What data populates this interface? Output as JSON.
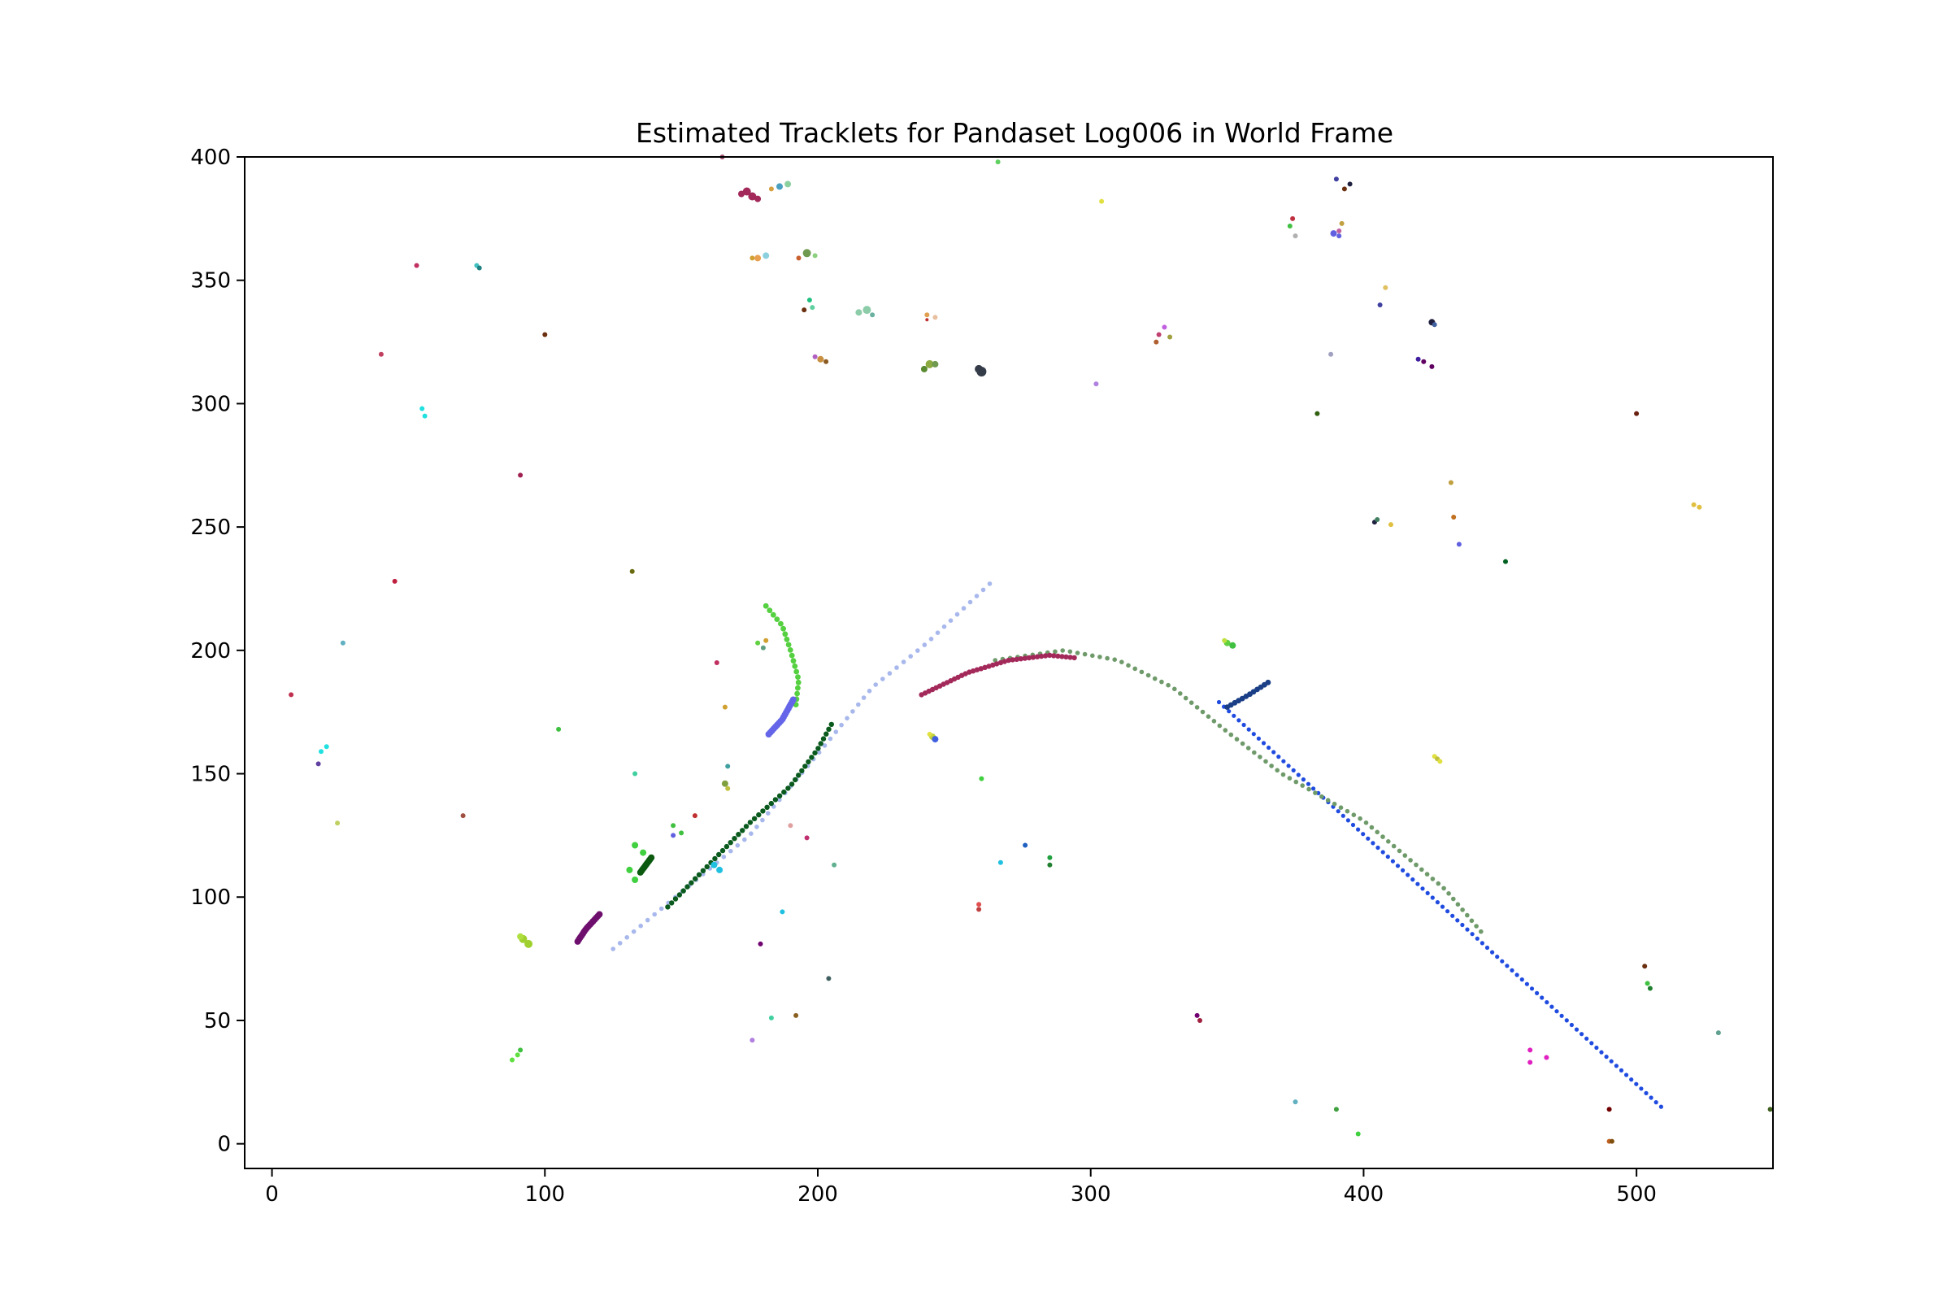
{
  "chart_data": {
    "type": "scatter",
    "title": "Estimated Tracklets for Pandaset Log006 in World Frame",
    "xlabel": "",
    "ylabel": "",
    "xlim": [
      -10,
      550
    ],
    "ylim": [
      -10,
      400
    ],
    "xticks": [
      0,
      100,
      200,
      300,
      400,
      500
    ],
    "yticks": [
      0,
      50,
      100,
      150,
      200,
      250,
      300,
      350,
      400
    ],
    "grid": false,
    "legend": "none",
    "tracks": [
      {
        "color": "#1f4be0",
        "kind": "line",
        "from": [
          347,
          179
        ],
        "to": [
          509,
          15
        ],
        "n": 90,
        "r": 2.6
      },
      {
        "color": "#a8b8ec",
        "kind": "poly",
        "pts": [
          [
            125,
            79
          ],
          [
            150,
            102
          ],
          [
            175,
            125
          ],
          [
            200,
            158
          ],
          [
            220,
            185
          ],
          [
            240,
            203
          ],
          [
            263,
            227
          ]
        ],
        "n": 60,
        "r": 2.8
      },
      {
        "color": "#6f9a6a",
        "kind": "poly",
        "pts": [
          [
            265,
            196
          ],
          [
            290,
            200
          ],
          [
            310,
            196
          ],
          [
            330,
            185
          ],
          [
            350,
            167
          ],
          [
            370,
            150
          ],
          [
            400,
            131
          ],
          [
            430,
            103
          ],
          [
            443,
            86
          ]
        ],
        "n": 80,
        "r": 2.8
      },
      {
        "color": "#a3295a",
        "kind": "poly",
        "pts": [
          [
            238,
            182
          ],
          [
            255,
            191
          ],
          [
            270,
            196
          ],
          [
            285,
            198
          ],
          [
            294,
            197
          ]
        ],
        "n": 40,
        "r": 3.2
      },
      {
        "color": "#0a5a1e",
        "kind": "poly",
        "pts": [
          [
            145,
            96
          ],
          [
            160,
            113
          ],
          [
            175,
            130
          ],
          [
            190,
            145
          ],
          [
            200,
            160
          ],
          [
            205,
            170
          ]
        ],
        "n": 45,
        "r": 3.2
      },
      {
        "color": "#1b3f86",
        "kind": "poly",
        "pts": [
          [
            350,
            177
          ],
          [
            358,
            182
          ],
          [
            365,
            187
          ]
        ],
        "n": 12,
        "r": 3.4
      },
      {
        "color": "#55d040",
        "kind": "poly",
        "pts": [
          [
            181,
            218
          ],
          [
            187,
            210
          ],
          [
            190,
            200
          ],
          [
            193,
            188
          ],
          [
            192,
            178
          ]
        ],
        "n": 20,
        "r": 3.4
      },
      {
        "color": "#6465e8",
        "kind": "poly",
        "pts": [
          [
            182,
            166
          ],
          [
            187,
            172
          ],
          [
            191,
            180
          ]
        ],
        "n": 18,
        "r": 4
      },
      {
        "color": "#6e0f6e",
        "kind": "poly",
        "pts": [
          [
            112,
            82
          ],
          [
            115,
            87
          ],
          [
            120,
            93
          ]
        ],
        "n": 16,
        "r": 4
      },
      {
        "color": "#0b5a10",
        "kind": "poly",
        "pts": [
          [
            135,
            110
          ],
          [
            139,
            116
          ]
        ],
        "n": 12,
        "r": 4
      }
    ],
    "points": [
      [
        176,
        384,
        "#a3295a",
        5
      ],
      [
        174,
        386,
        "#a3295a",
        5
      ],
      [
        172,
        385,
        "#a3295a",
        4
      ],
      [
        178,
        383,
        "#a3295a",
        4
      ],
      [
        186,
        388,
        "#4aa0c0",
        4
      ],
      [
        189,
        389,
        "#8cd0a0",
        4
      ],
      [
        183,
        387,
        "#d4a040",
        3
      ],
      [
        178,
        359,
        "#e8a050",
        4
      ],
      [
        181,
        360,
        "#8cd0e0",
        4
      ],
      [
        176,
        359,
        "#d0a030",
        3
      ],
      [
        196,
        361,
        "#6f9a50",
        5
      ],
      [
        193,
        359,
        "#c86030",
        3
      ],
      [
        199,
        360,
        "#8cd080",
        3
      ],
      [
        218,
        338,
        "#8ccca8",
        5
      ],
      [
        215,
        337,
        "#8ccca8",
        4
      ],
      [
        220,
        336,
        "#6ab0a0",
        3
      ],
      [
        241,
        316,
        "#8caa40",
        5
      ],
      [
        239,
        314,
        "#5a8a30",
        4
      ],
      [
        243,
        316,
        "#6f9a50",
        4
      ],
      [
        260,
        313,
        "#333c48",
        6
      ],
      [
        259,
        314,
        "#333c48",
        5
      ],
      [
        201,
        318,
        "#c89040",
        4
      ],
      [
        203,
        317,
        "#8a5a20",
        3
      ],
      [
        199,
        319,
        "#b060c0",
        3
      ],
      [
        197,
        342,
        "#20c080",
        3
      ],
      [
        198,
        339,
        "#60d0a0",
        3
      ],
      [
        195,
        338,
        "#6a3010",
        3
      ],
      [
        240,
        336,
        "#e0a050",
        3
      ],
      [
        243,
        335,
        "#e8c0a0",
        3
      ],
      [
        240,
        334,
        "#c03030",
        2
      ],
      [
        165,
        400,
        "#a05070",
        3
      ],
      [
        266,
        398,
        "#60d060",
        3
      ],
      [
        304,
        382,
        "#e0e040",
        3
      ],
      [
        302,
        308,
        "#b080e0",
        3
      ],
      [
        53,
        356,
        "#c03060",
        3
      ],
      [
        75,
        356,
        "#40c0c0",
        3
      ],
      [
        76,
        355,
        "#208080",
        3
      ],
      [
        100,
        328,
        "#6a3010",
        3
      ],
      [
        40,
        320,
        "#c04060",
        3
      ],
      [
        55,
        298,
        "#20e0e0",
        3
      ],
      [
        56,
        295,
        "#20e0e0",
        3
      ],
      [
        91,
        271,
        "#a02050",
        3
      ],
      [
        45,
        228,
        "#c02040",
        3
      ],
      [
        132,
        232,
        "#6a6a10",
        3
      ],
      [
        26,
        203,
        "#60b0c0",
        3
      ],
      [
        7,
        182,
        "#c03050",
        3
      ],
      [
        20,
        161,
        "#20e0e0",
        3
      ],
      [
        18,
        159,
        "#20e0e0",
        3
      ],
      [
        17,
        154,
        "#6040a0",
        3
      ],
      [
        105,
        168,
        "#40c040",
        3
      ],
      [
        24,
        130,
        "#c0d060",
        3
      ],
      [
        70,
        133,
        "#a05040",
        3
      ],
      [
        92,
        83,
        "#a0d030",
        5
      ],
      [
        94,
        81,
        "#a0d030",
        5
      ],
      [
        91,
        84,
        "#b0e040",
        4
      ],
      [
        88,
        34,
        "#60e040",
        3
      ],
      [
        90,
        36,
        "#60e040",
        3
      ],
      [
        91,
        38,
        "#40c040",
        3
      ],
      [
        133,
        121,
        "#40d040",
        4
      ],
      [
        136,
        118,
        "#40d040",
        4
      ],
      [
        133,
        107,
        "#40d040",
        4
      ],
      [
        131,
        111,
        "#40d040",
        4
      ],
      [
        147,
        125,
        "#6060e0",
        3
      ],
      [
        150,
        126,
        "#40c040",
        3
      ],
      [
        147,
        129,
        "#40c040",
        3
      ],
      [
        155,
        133,
        "#c03030",
        3
      ],
      [
        133,
        150,
        "#40d0a0",
        3
      ],
      [
        163,
        195,
        "#c03060",
        3
      ],
      [
        166,
        177,
        "#d0a030",
        3
      ],
      [
        167,
        153,
        "#40a0a0",
        3
      ],
      [
        166,
        146,
        "#80a040",
        4
      ],
      [
        167,
        144,
        "#c0c040",
        3
      ],
      [
        178,
        203,
        "#60d040",
        3
      ],
      [
        180,
        201,
        "#60a080",
        3
      ],
      [
        181,
        204,
        "#d0a030",
        3
      ],
      [
        162,
        113,
        "#20c0e0",
        4
      ],
      [
        164,
        111,
        "#20c0e0",
        4
      ],
      [
        190,
        129,
        "#e0a0a0",
        3
      ],
      [
        196,
        124,
        "#c03070",
        3
      ],
      [
        206,
        113,
        "#60b090",
        3
      ],
      [
        187,
        94,
        "#20c0e0",
        3
      ],
      [
        179,
        81,
        "#700070",
        3
      ],
      [
        204,
        67,
        "#406060",
        3
      ],
      [
        183,
        51,
        "#40d0a0",
        3
      ],
      [
        192,
        52,
        "#8a6020",
        3
      ],
      [
        176,
        42,
        "#b080e0",
        3
      ],
      [
        242,
        165,
        "#c0d040",
        4
      ],
      [
        243,
        164,
        "#4060e0",
        4
      ],
      [
        241,
        166,
        "#e0e040",
        3
      ],
      [
        260,
        148,
        "#40d040",
        3
      ],
      [
        259,
        97,
        "#e05050",
        3
      ],
      [
        259,
        95,
        "#c04040",
        3
      ],
      [
        267,
        114,
        "#20c0e0",
        3
      ],
      [
        276,
        121,
        "#2060c0",
        3
      ],
      [
        285,
        116,
        "#20a040",
        3
      ],
      [
        285,
        113,
        "#208030",
        3
      ],
      [
        339,
        52,
        "#700070",
        3
      ],
      [
        340,
        50,
        "#a02040",
        3
      ],
      [
        325,
        328,
        "#c04070",
        3
      ],
      [
        327,
        331,
        "#c060e0",
        3
      ],
      [
        324,
        325,
        "#b06030",
        3
      ],
      [
        329,
        327,
        "#a0a040",
        3
      ],
      [
        350,
        203,
        "#60d040",
        4
      ],
      [
        352,
        202,
        "#40c040",
        4
      ],
      [
        349,
        204,
        "#c0e040",
        3
      ],
      [
        373,
        372,
        "#40c040",
        3
      ],
      [
        374,
        375,
        "#c03040",
        3
      ],
      [
        375,
        368,
        "#b0b0b0",
        3
      ],
      [
        389,
        369,
        "#6060e0",
        4
      ],
      [
        391,
        368,
        "#6060e0",
        3
      ],
      [
        392,
        373,
        "#c0a040",
        3
      ],
      [
        391,
        370,
        "#c060a0",
        3
      ],
      [
        390,
        391,
        "#4040a0",
        3
      ],
      [
        393,
        387,
        "#6a3010",
        3
      ],
      [
        395,
        389,
        "#202040",
        3
      ],
      [
        383,
        296,
        "#306010",
        3
      ],
      [
        388,
        320,
        "#a0a0c0",
        3
      ],
      [
        406,
        340,
        "#4040a0",
        3
      ],
      [
        408,
        347,
        "#e0c060",
        3
      ],
      [
        420,
        318,
        "#4020a0",
        3
      ],
      [
        422,
        317,
        "#600060",
        3
      ],
      [
        425,
        315,
        "#600060",
        3
      ],
      [
        425,
        333,
        "#202040",
        4
      ],
      [
        426,
        332,
        "#4060a0",
        3
      ],
      [
        404,
        252,
        "#202040",
        3
      ],
      [
        405,
        253,
        "#408060",
        3
      ],
      [
        410,
        251,
        "#e0c040",
        3
      ],
      [
        432,
        268,
        "#c0a040",
        3
      ],
      [
        433,
        254,
        "#c07020",
        3
      ],
      [
        435,
        243,
        "#6060e0",
        3
      ],
      [
        452,
        236,
        "#006020",
        3
      ],
      [
        426,
        157,
        "#e0e040",
        3
      ],
      [
        427,
        156,
        "#c0c040",
        3
      ],
      [
        428,
        155,
        "#e0e040",
        3
      ],
      [
        500,
        296,
        "#6a2010",
        3
      ],
      [
        521,
        259,
        "#e0c040",
        3
      ],
      [
        523,
        258,
        "#e0c040",
        3
      ],
      [
        375,
        17,
        "#60b0c0",
        3
      ],
      [
        390,
        14,
        "#40a040",
        3
      ],
      [
        398,
        4,
        "#40d040",
        3
      ],
      [
        461,
        38,
        "#e020c0",
        3
      ],
      [
        461,
        33,
        "#e020c0",
        3
      ],
      [
        467,
        35,
        "#e020c0",
        3
      ],
      [
        490,
        14,
        "#700000",
        3
      ],
      [
        490,
        1,
        "#c06020",
        3
      ],
      [
        491,
        1,
        "#805010",
        3
      ],
      [
        503,
        72,
        "#6a3010",
        3
      ],
      [
        504,
        65,
        "#40c040",
        3
      ],
      [
        505,
        63,
        "#208030",
        3
      ],
      [
        530,
        45,
        "#60a090",
        3
      ],
      [
        549,
        14,
        "#406020",
        3
      ]
    ]
  }
}
